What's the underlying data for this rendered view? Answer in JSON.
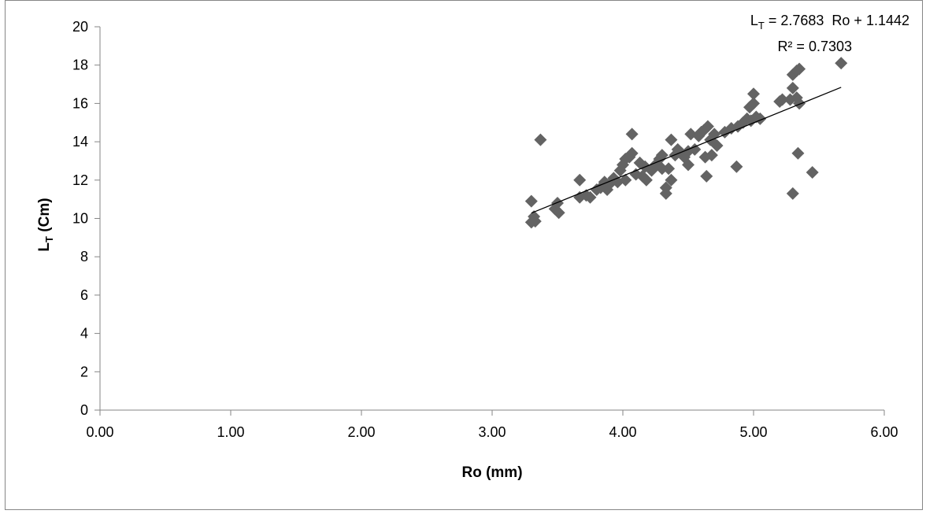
{
  "chart_data": {
    "type": "scatter",
    "title": "",
    "xlabel": "Ro (mm)",
    "ylabel_main": "L",
    "ylabel_sub": "T",
    "ylabel_rest": " (Cm)",
    "xlim": [
      0,
      6
    ],
    "ylim": [
      0,
      20
    ],
    "x_ticks": [
      0,
      1,
      2,
      3,
      4,
      5,
      6
    ],
    "x_tick_labels": [
      "0.00",
      "1.00",
      "2.00",
      "3.00",
      "4.00",
      "5.00",
      "6.00"
    ],
    "y_ticks": [
      0,
      2,
      4,
      6,
      8,
      10,
      12,
      14,
      16,
      18,
      20
    ],
    "y_tick_labels": [
      "0",
      "2",
      "4",
      "6",
      "8",
      "10",
      "12",
      "14",
      "16",
      "18",
      "20"
    ],
    "grid": false,
    "marker": "diamond",
    "marker_color": "#636363",
    "trendline": {
      "slope": 2.7683,
      "intercept": 1.1442,
      "x_range": [
        3.3,
        5.67
      ],
      "color": "#000000",
      "equation_lhs_main": "L",
      "equation_lhs_sub": "T",
      "equation_rhs": " = 2.7683  Ro + 1.1442",
      "r2_label": "R² = 0.7303"
    },
    "points": [
      [
        3.3,
        10.9
      ],
      [
        3.3,
        9.8
      ],
      [
        3.32,
        10.1
      ],
      [
        3.33,
        9.85
      ],
      [
        3.37,
        14.1
      ],
      [
        3.48,
        10.5
      ],
      [
        3.5,
        10.8
      ],
      [
        3.51,
        10.3
      ],
      [
        3.67,
        12.0
      ],
      [
        3.67,
        11.1
      ],
      [
        3.72,
        11.2
      ],
      [
        3.75,
        11.1
      ],
      [
        3.8,
        11.5
      ],
      [
        3.83,
        11.6
      ],
      [
        3.86,
        11.9
      ],
      [
        3.88,
        11.5
      ],
      [
        3.9,
        11.8
      ],
      [
        3.93,
        12.1
      ],
      [
        3.96,
        11.9
      ],
      [
        3.98,
        12.5
      ],
      [
        4.0,
        12.8
      ],
      [
        4.02,
        13.1
      ],
      [
        4.02,
        12.0
      ],
      [
        4.05,
        13.2
      ],
      [
        4.07,
        13.4
      ],
      [
        4.07,
        14.4
      ],
      [
        4.1,
        12.3
      ],
      [
        4.13,
        12.9
      ],
      [
        4.15,
        12.2
      ],
      [
        4.17,
        12.7
      ],
      [
        4.18,
        12.0
      ],
      [
        4.22,
        12.5
      ],
      [
        4.25,
        12.8
      ],
      [
        4.28,
        13.1
      ],
      [
        4.3,
        12.6
      ],
      [
        4.3,
        13.3
      ],
      [
        4.33,
        11.3
      ],
      [
        4.33,
        11.6
      ],
      [
        4.35,
        12.6
      ],
      [
        4.37,
        14.1
      ],
      [
        4.37,
        12.0
      ],
      [
        4.4,
        13.3
      ],
      [
        4.42,
        13.6
      ],
      [
        4.45,
        13.4
      ],
      [
        4.47,
        13.2
      ],
      [
        4.5,
        13.5
      ],
      [
        4.5,
        12.8
      ],
      [
        4.52,
        14.4
      ],
      [
        4.55,
        13.6
      ],
      [
        4.58,
        14.3
      ],
      [
        4.6,
        14.5
      ],
      [
        4.62,
        14.6
      ],
      [
        4.63,
        13.2
      ],
      [
        4.64,
        12.2
      ],
      [
        4.65,
        14.8
      ],
      [
        4.67,
        14.1
      ],
      [
        4.68,
        13.3
      ],
      [
        4.7,
        14.4
      ],
      [
        4.72,
        13.8
      ],
      [
        4.78,
        14.5
      ],
      [
        4.83,
        14.7
      ],
      [
        4.87,
        12.7
      ],
      [
        4.88,
        14.8
      ],
      [
        4.92,
        15.0
      ],
      [
        4.95,
        15.2
      ],
      [
        4.97,
        15.8
      ],
      [
        4.98,
        15.1
      ],
      [
        5.0,
        16.0
      ],
      [
        5.0,
        16.5
      ],
      [
        5.02,
        15.3
      ],
      [
        5.05,
        15.2
      ],
      [
        5.2,
        16.1
      ],
      [
        5.22,
        16.2
      ],
      [
        5.28,
        16.2
      ],
      [
        5.3,
        16.8
      ],
      [
        5.3,
        17.5
      ],
      [
        5.3,
        11.3
      ],
      [
        5.33,
        17.7
      ],
      [
        5.33,
        16.3
      ],
      [
        5.34,
        13.4
      ],
      [
        5.35,
        17.8
      ],
      [
        5.35,
        16.0
      ],
      [
        5.45,
        12.4
      ],
      [
        5.67,
        18.1
      ]
    ]
  }
}
